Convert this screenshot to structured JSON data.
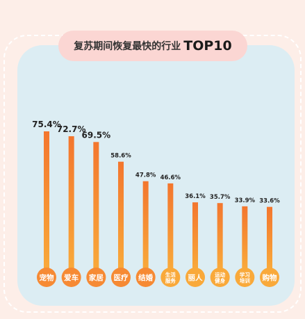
{
  "colors": {
    "background": "#fdeee8",
    "panel": "#dcedf3",
    "title_pill": "#fbd6d3",
    "bar_top_dark": "#f3762e",
    "bar_light": "#f9a93a"
  },
  "title": {
    "main": "复苏期间恢复最快的行业",
    "highlight": "TOP10"
  },
  "chart_data": {
    "type": "bar",
    "title": "复苏期间恢复最快的行业 TOP10",
    "categories": [
      "宠物",
      "爱车",
      "家居",
      "医疗",
      "结婚",
      "生活服务",
      "丽人",
      "运动健身",
      "学习培训",
      "购物"
    ],
    "category_lines": [
      [
        "宠物"
      ],
      [
        "爱车"
      ],
      [
        "家居"
      ],
      [
        "医疗"
      ],
      [
        "结婚"
      ],
      [
        "生活",
        "服务"
      ],
      [
        "丽人"
      ],
      [
        "运动",
        "健身"
      ],
      [
        "学习",
        "培训"
      ],
      [
        "购物"
      ]
    ],
    "values": [
      75.4,
      72.7,
      69.5,
      58.6,
      47.8,
      46.6,
      36.1,
      35.7,
      33.9,
      33.6
    ],
    "value_labels": [
      "75.4%",
      "72.7%",
      "69.5%",
      "58.6%",
      "47.8%",
      "46.6%",
      "36.1%",
      "35.7%",
      "33.9%",
      "33.6%"
    ],
    "unit": "%",
    "xlabel": "",
    "ylabel": "",
    "ylim": [
      0,
      80
    ],
    "grid": false,
    "legend": "none"
  }
}
